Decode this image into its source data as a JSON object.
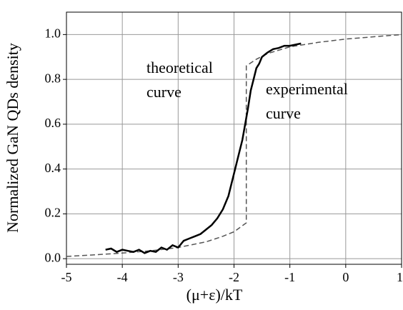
{
  "chart_data": {
    "type": "line",
    "x_label": "(μ+ε)/kT",
    "y_label": "Normalized GaN QDs density",
    "xlim": [
      -5,
      1
    ],
    "ylim": [
      -0.025,
      1.1
    ],
    "xticks": [
      -5,
      -4,
      -3,
      -2,
      -1,
      0,
      1
    ],
    "yticks": [
      {
        "value": 0,
        "label": "0.0"
      },
      0.2,
      0.4,
      0.6,
      0.8,
      {
        "value": 1,
        "label": "1.0"
      }
    ],
    "grid": true,
    "series": [
      {
        "color": "#555555",
        "dash": true,
        "x": [
          -5,
          -4.5,
          -4,
          -3.5,
          -3,
          -2.5,
          -2.2,
          -2,
          -1.78,
          -1.78,
          -1.6,
          -1.4,
          -1.2,
          -1,
          -0.5,
          0,
          0.5,
          1
        ],
        "values": [
          0.01,
          0.017,
          0.025,
          0.035,
          0.05,
          0.075,
          0.1,
          0.12,
          0.16,
          0.86,
          0.89,
          0.915,
          0.93,
          0.945,
          0.965,
          0.98,
          0.99,
          1.0
        ]
      },
      {
        "color": "#000000",
        "dash": false,
        "x": [
          -4.3,
          -4.2,
          -4.1,
          -4.0,
          -3.9,
          -3.8,
          -3.7,
          -3.6,
          -3.5,
          -3.4,
          -3.3,
          -3.2,
          -3.1,
          -3.0,
          -2.9,
          -2.8,
          -2.7,
          -2.6,
          -2.5,
          -2.4,
          -2.3,
          -2.2,
          -2.1,
          -2.05,
          -2.0,
          -1.95,
          -1.9,
          -1.85,
          -1.8,
          -1.75,
          -1.7,
          -1.65,
          -1.6,
          -1.55,
          -1.5,
          -1.45,
          -1.4,
          -1.3,
          -1.2,
          -1.1,
          -1.0,
          -0.9,
          -0.8
        ],
        "values": [
          0.04,
          0.045,
          0.03,
          0.04,
          0.035,
          0.03,
          0.04,
          0.025,
          0.035,
          0.03,
          0.05,
          0.04,
          0.06,
          0.05,
          0.08,
          0.09,
          0.1,
          0.11,
          0.13,
          0.15,
          0.18,
          0.22,
          0.28,
          0.33,
          0.38,
          0.43,
          0.48,
          0.53,
          0.6,
          0.67,
          0.75,
          0.8,
          0.85,
          0.87,
          0.9,
          0.91,
          0.92,
          0.935,
          0.94,
          0.95,
          0.95,
          0.955,
          0.96
        ]
      }
    ],
    "annotations": [
      {
        "lines": [
          "theoretical",
          "curve"
        ],
        "color": "#666666"
      },
      {
        "lines": [
          "experimental",
          "curve"
        ],
        "color": "#000000"
      }
    ]
  }
}
